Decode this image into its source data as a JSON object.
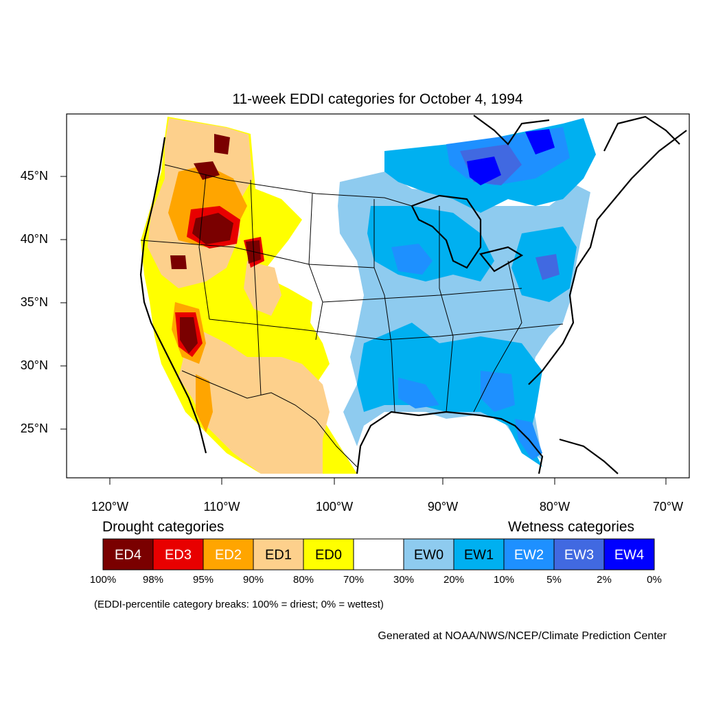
{
  "title": "11-week EDDI categories for October 4, 1994",
  "lat_ticks": [
    "45°N",
    "40°N",
    "35°N",
    "30°N",
    "25°N"
  ],
  "lon_ticks": [
    "120°W",
    "110°W",
    "100°W",
    "90°W",
    "80°W",
    "70°W"
  ],
  "legend": {
    "drought_heading": "Drought categories",
    "wetness_heading": "Wetness categories",
    "categories": [
      {
        "label": "ED4",
        "color": "#7a0000",
        "text_color": "#ffffff"
      },
      {
        "label": "ED3",
        "color": "#e80000",
        "text_color": "#ffffff"
      },
      {
        "label": "ED2",
        "color": "#ffa500",
        "text_color": "#ffffff"
      },
      {
        "label": "ED1",
        "color": "#fdd08c",
        "text_color": "#000000"
      },
      {
        "label": "ED0",
        "color": "#ffff00",
        "text_color": "#000000"
      },
      {
        "label": "",
        "color": "#ffffff",
        "text_color": "#000000"
      },
      {
        "label": "EW0",
        "color": "#8ecbef",
        "text_color": "#000000"
      },
      {
        "label": "EW1",
        "color": "#00b0f0",
        "text_color": "#000000"
      },
      {
        "label": "EW2",
        "color": "#1e90ff",
        "text_color": "#ffffff"
      },
      {
        "label": "EW3",
        "color": "#4169e1",
        "text_color": "#ffffff"
      },
      {
        "label": "EW4",
        "color": "#0000ff",
        "text_color": "#ffffff"
      }
    ],
    "percent_breaks": [
      "100%",
      "98%",
      "95%",
      "90%",
      "80%",
      "70%",
      "30%",
      "20%",
      "10%",
      "5%",
      "2%",
      "0%"
    ]
  },
  "note": "(EDDI-percentile category breaks: 100% = driest; 0% = wettest)",
  "credit": "Generated at NOAA/NWS/NCEP/Climate Prediction Center"
}
